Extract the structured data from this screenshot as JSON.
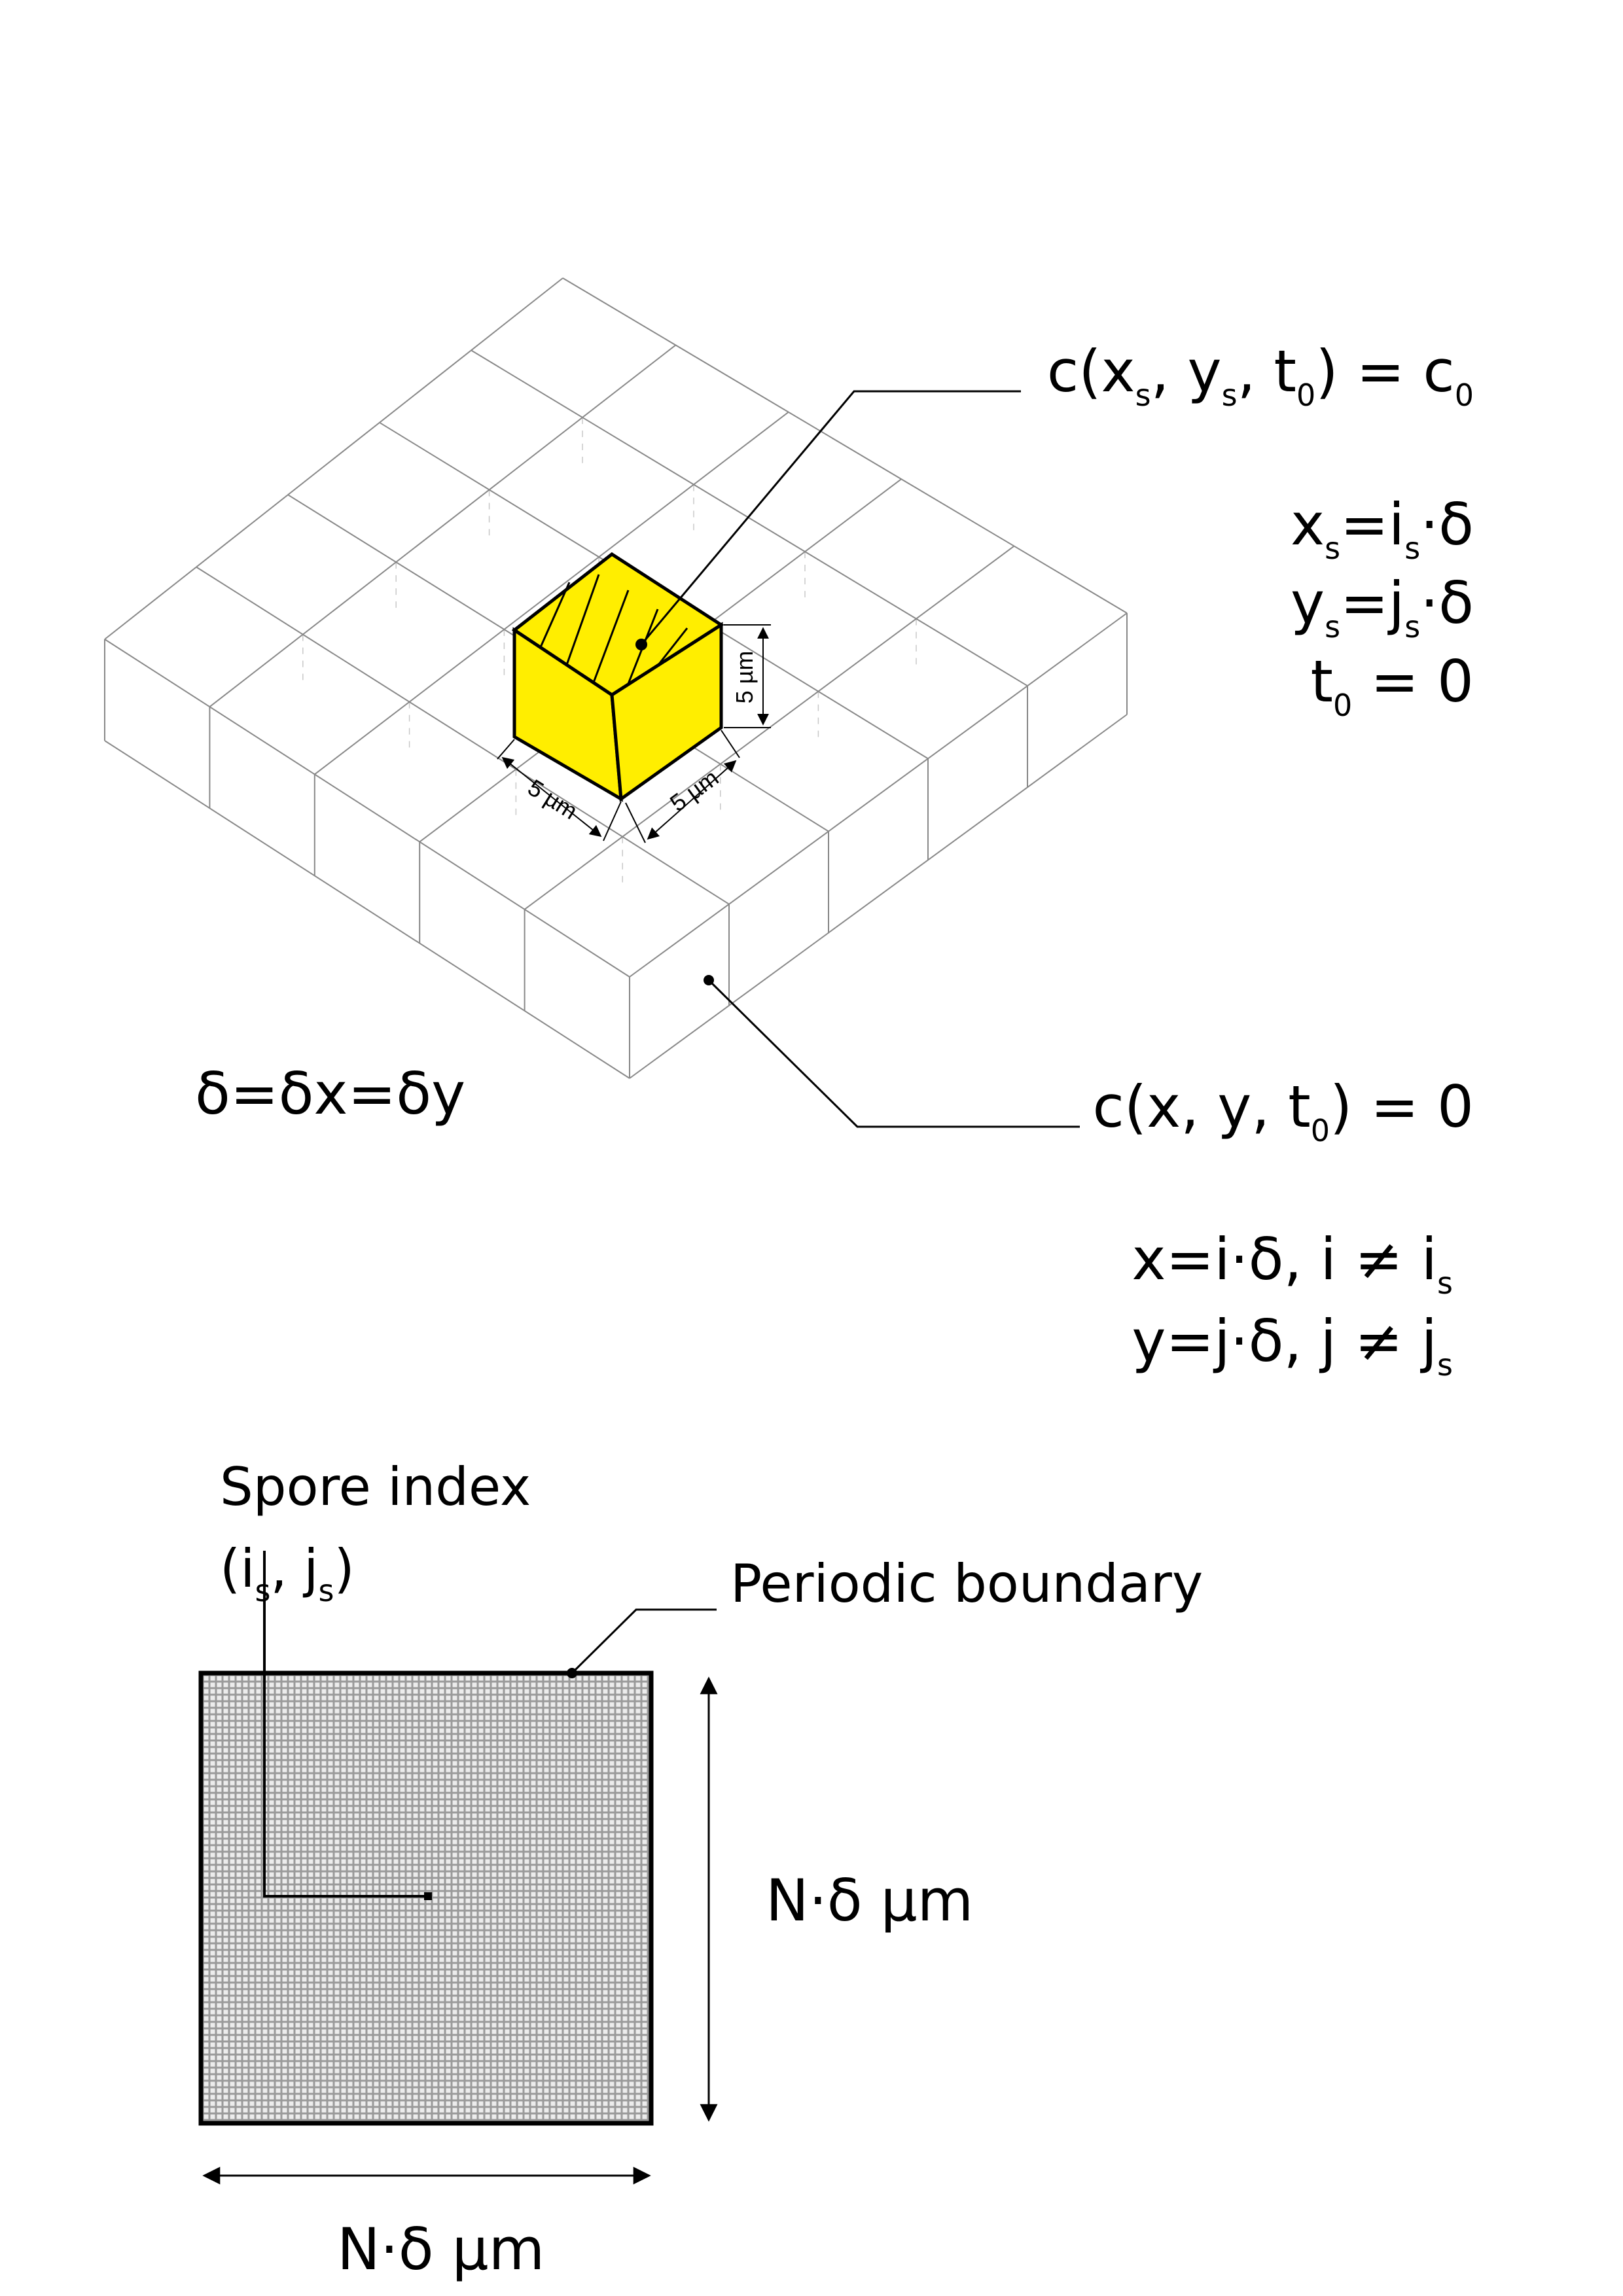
{
  "iso_block": {
    "cube_dims": {
      "width": "5 µm",
      "depth": "5 µm",
      "height": "5 µm"
    },
    "delta_def": "δ=δx=δy",
    "spore_cond": {
      "c": "c(x",
      "s1": "s",
      "mid1": ", y",
      "s2": "s",
      "mid2": ", t",
      "t0": "0",
      "end": ") = c",
      "c0": "0"
    },
    "xs_def": {
      "a": "x",
      "s1": "s",
      "b": "=i",
      "s2": "s",
      "c": "·δ"
    },
    "ys_def": {
      "a": "y",
      "s1": "s",
      "b": "=j",
      "s2": "s",
      "c": "·δ"
    },
    "t0_def": {
      "a": "t",
      "s1": "0",
      "b": " = 0"
    },
    "bg_cond": {
      "a": "c(x, y, t",
      "s1": "0",
      "b": ") = 0"
    },
    "x_def": {
      "a": "x=i·δ, i ≠ i",
      "s1": "s"
    },
    "y_def": {
      "a": "y=j·δ, j ≠ j",
      "s1": "s"
    }
  },
  "domain": {
    "spore_index_label": "Spore index",
    "spore_index_value": {
      "a": "(i",
      "s1": "s",
      "b": ", j",
      "s2": "s",
      "c": ")"
    },
    "boundary_label": "Periodic boundary",
    "height_label": "N·δ µm",
    "width_label": "N·δ µm"
  },
  "colors": {
    "spore_cell": "#ffee00",
    "grid_line": "#888888",
    "dashed": "#c8c8c8",
    "domain_fill": "#9a9a9a",
    "domain_grid": "#ececec"
  }
}
